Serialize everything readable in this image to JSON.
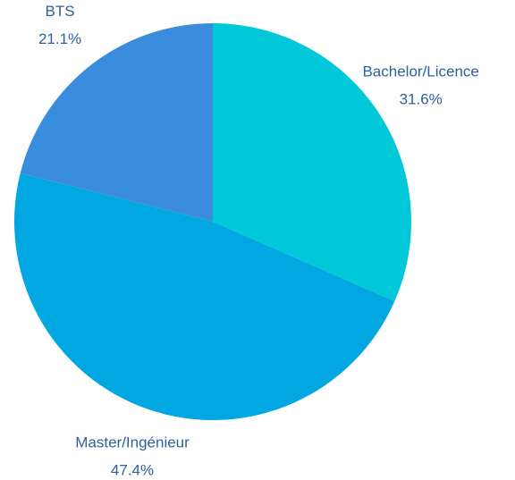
{
  "chart_data": {
    "type": "pie",
    "categories": [
      "Bachelor/Licence",
      "Master/Ingénieur",
      "BTS"
    ],
    "values": [
      31.6,
      47.4,
      21.1
    ],
    "value_labels": [
      "31.6%",
      "47.4%",
      "21.1%"
    ],
    "colors": [
      "#00c8d8",
      "#00a7e1",
      "#3a8ddc"
    ]
  }
}
